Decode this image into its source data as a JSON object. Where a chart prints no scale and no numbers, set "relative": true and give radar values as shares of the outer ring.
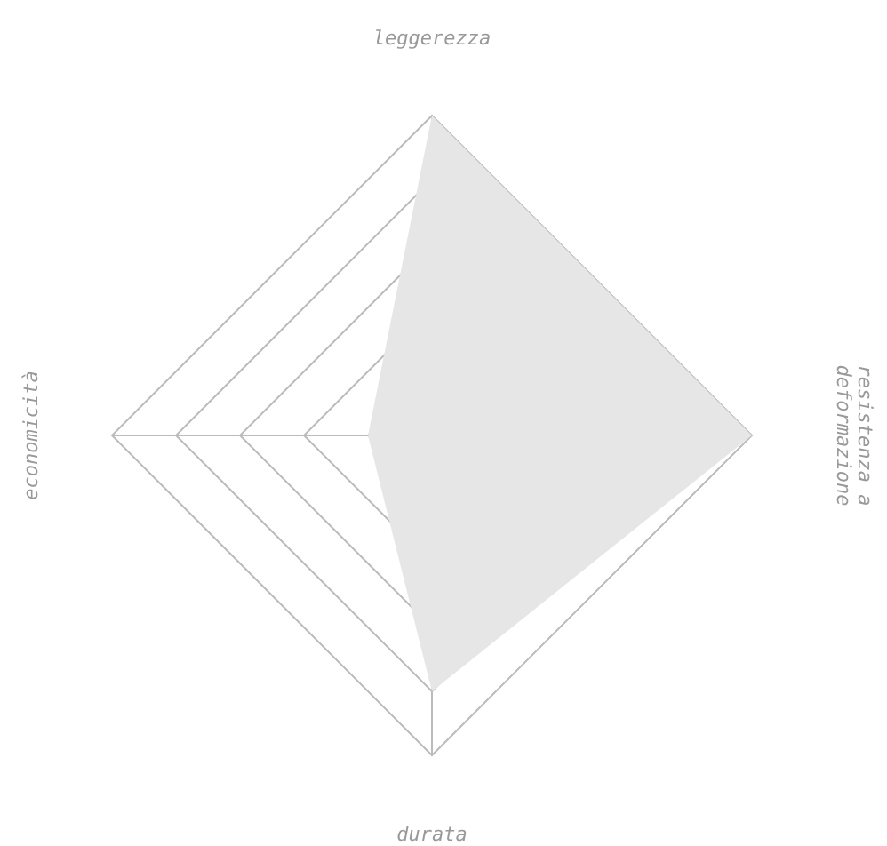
{
  "chart_data": {
    "type": "radar",
    "relative": true,
    "categories": [
      "leggerezza",
      "resistenza a deformazione",
      "durata",
      "economicità"
    ],
    "series": [
      {
        "color": "#e6e6e6",
        "values": [
          1,
          1,
          0.8,
          0.2
        ]
      }
    ]
  }
}
